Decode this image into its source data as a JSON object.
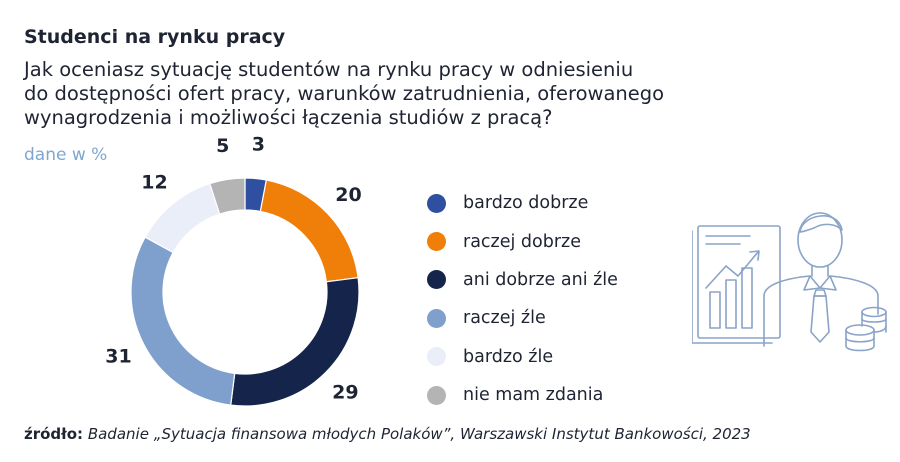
{
  "header": {
    "title": "Studenci na rynku pracy",
    "question_lines": [
      "Jak oceniasz sytuację studentów na rynku pracy w odniesieniu",
      "do dostępności ofert pracy, warunków zatrudnienia, oferowanego",
      "wynagrodzenia i możliwości łączenia studiów z pracą?"
    ],
    "unit": "dane w %"
  },
  "chart_data": {
    "type": "pie",
    "donut": true,
    "categories": [
      "bardzo dobrze",
      "raczej dobrze",
      "ani dobrze ani źle",
      "raczej źle",
      "bardzo źle",
      "nie mam zdania"
    ],
    "values": [
      3,
      20,
      29,
      31,
      12,
      5
    ],
    "colors": [
      "#2f4fa0",
      "#f07f09",
      "#14244a",
      "#7fa0cc",
      "#e9eef8",
      "#b4b4b4"
    ],
    "unit": "%",
    "legend_position": "right"
  },
  "footer": {
    "source_prefix": "źródło:",
    "source_text": "Badanie „Sytuacja finansowa młodych Polaków”, Warszawski Instytut Bankowości, 2023"
  },
  "illustration": {
    "icon": "businessman-with-chart-and-coins-icon"
  }
}
